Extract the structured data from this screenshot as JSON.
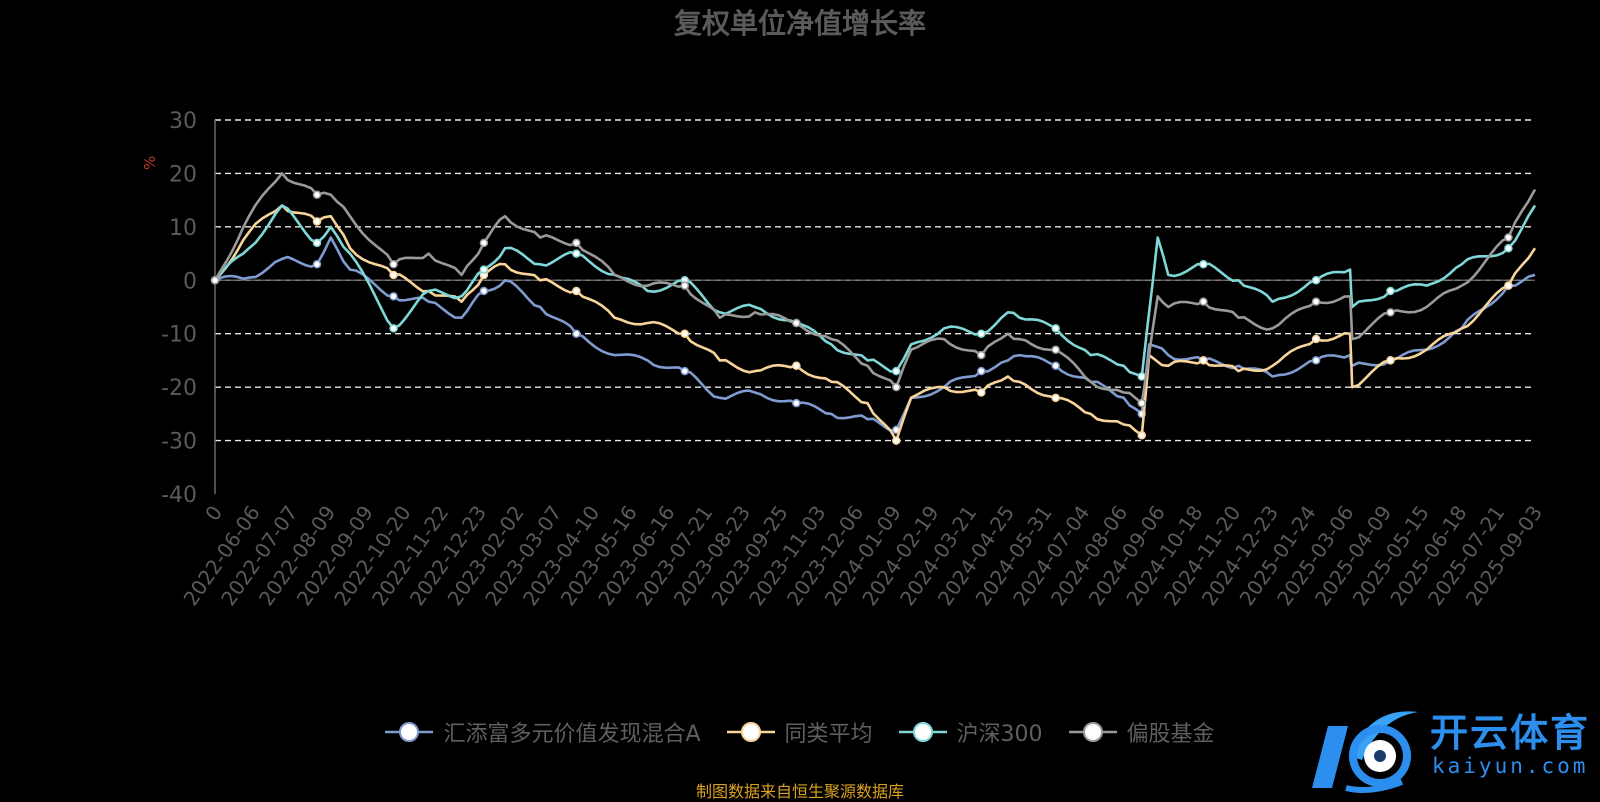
{
  "title": "复权单位净值增长率",
  "source_note": "制图数据来自恒生聚源数据库",
  "logo": {
    "text": "开云体育",
    "url": "kaiyun.com"
  },
  "chart_data": {
    "type": "line",
    "ylabel": "%",
    "ylim": [
      -40,
      30
    ],
    "yticks": [
      30,
      20,
      10,
      0,
      -10,
      -20,
      -30,
      -40
    ],
    "grid": true,
    "legend_position": "bottom",
    "xlim": [
      "2022-05-05",
      "2025-09-28"
    ],
    "xticks": [
      "0",
      "2022-06-06",
      "2022-07-07",
      "2022-08-09",
      "2022-09-09",
      "2022-10-20",
      "2022-11-22",
      "2022-12-23",
      "2023-02-02",
      "2023-03-07",
      "2023-04-10",
      "2023-05-16",
      "2023-06-16",
      "2023-07-21",
      "2023-08-23",
      "2023-09-25",
      "2023-11-03",
      "2023-12-06",
      "2024-01-09",
      "2024-02-19",
      "2024-03-21",
      "2024-04-25",
      "2024-05-31",
      "2024-07-04",
      "2024-08-06",
      "2024-09-06",
      "2024-10-18",
      "2024-11-20",
      "2024-12-23",
      "2025-01-24",
      "2025-03-06",
      "2025-04-09",
      "2025-05-15",
      "2025-06-18",
      "2025-07-21",
      "2025-09-03"
    ],
    "series": [
      {
        "name": "汇添富多元价值发现混合A",
        "color": "#7f9bd0",
        "x": [
          "2022-05-05",
          "2022-06-06",
          "2022-07-07",
          "2022-08-09",
          "2022-08-22",
          "2022-09-09",
          "2022-10-20",
          "2022-11-22",
          "2022-12-23",
          "2023-01-13",
          "2023-02-02",
          "2023-03-07",
          "2023-04-10",
          "2023-05-16",
          "2023-06-16",
          "2023-07-21",
          "2023-08-23",
          "2023-09-25",
          "2023-11-03",
          "2023-12-06",
          "2024-01-09",
          "2024-02-05",
          "2024-02-19",
          "2024-03-21",
          "2024-04-25",
          "2024-05-20",
          "2024-05-31",
          "2024-07-04",
          "2024-08-06",
          "2024-09-06",
          "2024-09-23",
          "2024-09-30",
          "2024-10-18",
          "2024-11-20",
          "2024-12-23",
          "2025-01-24",
          "2025-03-06",
          "2025-04-07",
          "2025-04-09",
          "2025-05-15",
          "2025-06-18",
          "2025-07-21",
          "2025-09-03",
          "2025-09-28"
        ],
        "y": [
          0,
          0.5,
          4,
          3,
          8,
          2,
          -3,
          -4,
          -7,
          -2,
          0,
          -5,
          -10,
          -14,
          -15,
          -17,
          -22,
          -21,
          -23,
          -25,
          -26,
          -28,
          -22,
          -20,
          -17,
          -15,
          -14,
          -16,
          -19,
          -22,
          -25,
          -12,
          -14,
          -15,
          -16,
          -18,
          -15,
          -14,
          -16,
          -15,
          -13,
          -9,
          -1,
          1
        ]
      },
      {
        "name": "同类平均",
        "color": "#f8d49a",
        "x": [
          "2022-05-05",
          "2022-06-06",
          "2022-07-07",
          "2022-08-09",
          "2022-08-22",
          "2022-09-09",
          "2022-10-20",
          "2022-11-22",
          "2022-12-23",
          "2023-01-13",
          "2023-02-02",
          "2023-03-07",
          "2023-04-10",
          "2023-05-16",
          "2023-06-16",
          "2023-07-21",
          "2023-08-23",
          "2023-09-25",
          "2023-11-03",
          "2023-12-06",
          "2024-01-09",
          "2024-02-05",
          "2024-02-19",
          "2024-03-21",
          "2024-04-25",
          "2024-05-20",
          "2024-05-31",
          "2024-07-04",
          "2024-08-06",
          "2024-09-06",
          "2024-09-23",
          "2024-09-30",
          "2024-10-18",
          "2024-11-20",
          "2024-12-23",
          "2025-01-24",
          "2025-03-06",
          "2025-04-07",
          "2025-04-09",
          "2025-05-15",
          "2025-06-18",
          "2025-07-21",
          "2025-09-03",
          "2025-09-28"
        ],
        "y": [
          0,
          9,
          14,
          11,
          12,
          6,
          1,
          -2,
          -4,
          1,
          3,
          0,
          -2,
          -7,
          -8,
          -10,
          -15,
          -17,
          -16,
          -19,
          -23,
          -30,
          -22,
          -20,
          -21,
          -18,
          -19,
          -22,
          -25,
          -27,
          -29,
          -14,
          -16,
          -15,
          -17,
          -16,
          -11,
          -10,
          -20,
          -15,
          -13,
          -9,
          -1,
          6
        ]
      },
      {
        "name": "沪深300",
        "color": "#7fd7d8",
        "x": [
          "2022-05-05",
          "2022-06-06",
          "2022-07-07",
          "2022-08-09",
          "2022-08-22",
          "2022-09-09",
          "2022-10-20",
          "2022-11-22",
          "2022-12-23",
          "2023-01-13",
          "2023-02-02",
          "2023-03-07",
          "2023-04-10",
          "2023-05-16",
          "2023-06-16",
          "2023-07-21",
          "2023-08-23",
          "2023-09-25",
          "2023-11-03",
          "2023-12-06",
          "2024-01-09",
          "2024-02-05",
          "2024-02-19",
          "2024-03-21",
          "2024-04-25",
          "2024-05-20",
          "2024-05-31",
          "2024-07-04",
          "2024-08-06",
          "2024-09-06",
          "2024-09-23",
          "2024-10-08",
          "2024-10-18",
          "2024-11-20",
          "2024-12-23",
          "2025-01-24",
          "2025-03-06",
          "2025-04-07",
          "2025-04-09",
          "2025-05-15",
          "2025-06-18",
          "2025-07-21",
          "2025-09-03",
          "2025-09-28"
        ],
        "y": [
          0,
          6,
          14,
          7,
          10,
          5,
          -9,
          -2,
          -3,
          2,
          6,
          3,
          5,
          1,
          -2,
          0,
          -6,
          -5,
          -8,
          -12,
          -15,
          -17,
          -12,
          -9,
          -10,
          -6,
          -7,
          -9,
          -14,
          -16,
          -18,
          8,
          1,
          3,
          0,
          -4,
          0,
          2,
          -5,
          -2,
          -1,
          3,
          6,
          14
        ]
      },
      {
        "name": "偏股基金",
        "color": "#9a9a9a",
        "x": [
          "2022-05-05",
          "2022-06-06",
          "2022-07-07",
          "2022-08-09",
          "2022-08-22",
          "2022-09-09",
          "2022-10-20",
          "2022-11-22",
          "2022-12-23",
          "2023-01-13",
          "2023-02-02",
          "2023-03-07",
          "2023-04-10",
          "2023-05-16",
          "2023-06-16",
          "2023-07-21",
          "2023-08-23",
          "2023-09-25",
          "2023-11-03",
          "2023-12-06",
          "2024-01-09",
          "2024-02-05",
          "2024-02-19",
          "2024-03-21",
          "2024-04-25",
          "2024-05-20",
          "2024-05-31",
          "2024-07-04",
          "2024-08-06",
          "2024-09-06",
          "2024-09-23",
          "2024-10-08",
          "2024-10-18",
          "2024-11-20",
          "2024-12-23",
          "2025-01-24",
          "2025-03-06",
          "2025-04-07",
          "2025-04-09",
          "2025-05-15",
          "2025-06-18",
          "2025-07-21",
          "2025-09-03",
          "2025-09-28"
        ],
        "y": [
          0,
          12,
          20,
          16,
          16,
          12,
          3,
          5,
          1,
          7,
          12,
          8,
          7,
          1,
          -1,
          -1,
          -7,
          -6,
          -8,
          -11,
          -16,
          -20,
          -13,
          -11,
          -14,
          -10,
          -11,
          -13,
          -19,
          -21,
          -23,
          -3,
          -5,
          -4,
          -7,
          -9,
          -4,
          -3,
          -11,
          -6,
          -5,
          -1,
          8,
          17
        ]
      }
    ]
  }
}
